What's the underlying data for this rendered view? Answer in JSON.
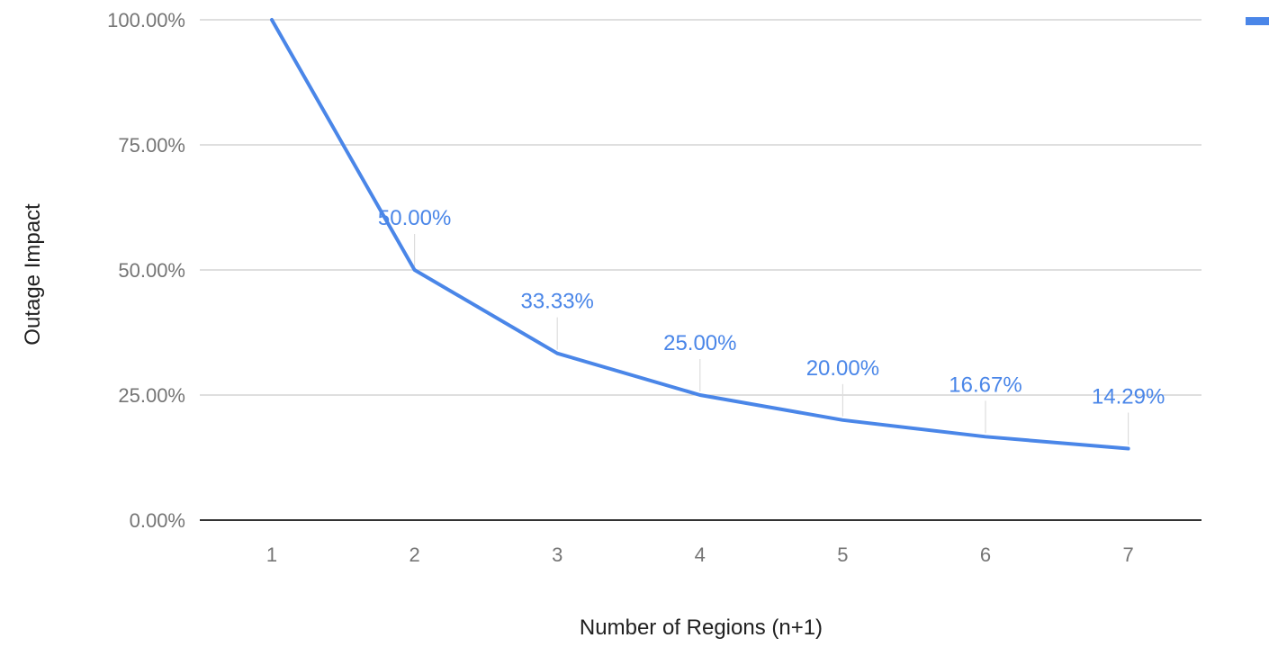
{
  "chart_data": {
    "type": "line",
    "x": [
      1,
      2,
      3,
      4,
      5,
      6,
      7
    ],
    "categories": [
      "1",
      "2",
      "3",
      "4",
      "5",
      "6",
      "7"
    ],
    "series": [
      {
        "values": [
          100.0,
          50.0,
          33.33,
          25.0,
          20.0,
          16.67,
          14.29
        ],
        "data_labels": [
          "",
          "50.00%",
          "33.33%",
          "25.00%",
          "20.00%",
          "16.67%",
          "14.29%"
        ],
        "color": "#4a86e8"
      }
    ],
    "y_ticks": [
      "0.00%",
      "25.00%",
      "50.00%",
      "75.00%",
      "100.00%"
    ],
    "y_tick_values": [
      0,
      25,
      50,
      75,
      100
    ],
    "ylim": [
      0,
      100
    ],
    "xlabel": "Number of Regions (n+1)",
    "ylabel": "Outage Impact",
    "grid": true,
    "legend_position": "top-right",
    "colors": {
      "gridline": "#cccccc",
      "baseline": "#333333",
      "tick_text": "#757575",
      "axis_title": "#212121"
    }
  }
}
